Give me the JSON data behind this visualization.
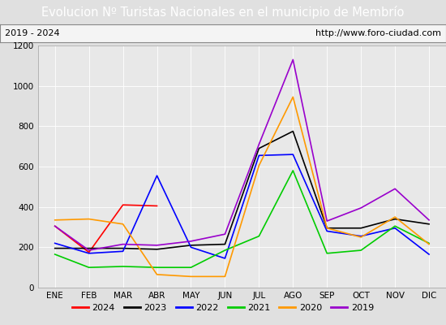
{
  "title": "Evolucion Nº Turistas Nacionales en el municipio de Membrío",
  "subtitle_left": "2019 - 2024",
  "subtitle_right": "http://www.foro-ciudad.com",
  "months": [
    "ENE",
    "FEB",
    "MAR",
    "ABR",
    "MAY",
    "JUN",
    "JUL",
    "AGO",
    "SEP",
    "OCT",
    "NOV",
    "DIC"
  ],
  "series": {
    "2024": {
      "color": "#ff0000",
      "data": [
        305,
        175,
        410,
        405,
        null,
        null,
        null,
        null,
        null,
        null,
        null,
        null
      ]
    },
    "2023": {
      "color": "#000000",
      "data": [
        195,
        195,
        195,
        190,
        210,
        215,
        690,
        775,
        295,
        295,
        340,
        315
      ]
    },
    "2022": {
      "color": "#0000ff",
      "data": [
        220,
        170,
        180,
        555,
        200,
        145,
        655,
        660,
        280,
        255,
        295,
        165
      ]
    },
    "2021": {
      "color": "#00cc00",
      "data": [
        165,
        100,
        105,
        100,
        100,
        185,
        255,
        580,
        170,
        185,
        305,
        220
      ]
    },
    "2020": {
      "color": "#ff9900",
      "data": [
        335,
        340,
        315,
        65,
        55,
        55,
        605,
        945,
        295,
        250,
        350,
        215
      ]
    },
    "2019": {
      "color": "#9900cc",
      "data": [
        305,
        185,
        215,
        210,
        230,
        265,
        710,
        1130,
        330,
        395,
        490,
        335
      ]
    }
  },
  "ylim": [
    0,
    1200
  ],
  "yticks": [
    0,
    200,
    400,
    600,
    800,
    1000,
    1200
  ],
  "title_bg_color": "#4472c4",
  "title_color": "#ffffff",
  "plot_bg_color": "#e8e8e8",
  "grid_color": "#ffffff",
  "border_color": "#4472c4",
  "legend_order": [
    "2024",
    "2023",
    "2022",
    "2021",
    "2020",
    "2019"
  ],
  "title_fontsize": 10.5,
  "tick_fontsize": 7.5,
  "legend_fontsize": 8
}
